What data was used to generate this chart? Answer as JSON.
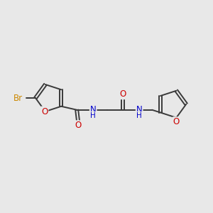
{
  "bg_color": "#e8e8e8",
  "atom_colors": {
    "C": "#3a3a3a",
    "N": "#0000cc",
    "O": "#cc0000",
    "Br": "#cc8800"
  },
  "bond_color": "#3a3a3a",
  "bond_lw": 1.4,
  "font_size": 8.5,
  "figsize": [
    3.0,
    3.0
  ],
  "dpi": 100,
  "xlim": [
    0,
    300
  ],
  "ylim": [
    0,
    300
  ]
}
